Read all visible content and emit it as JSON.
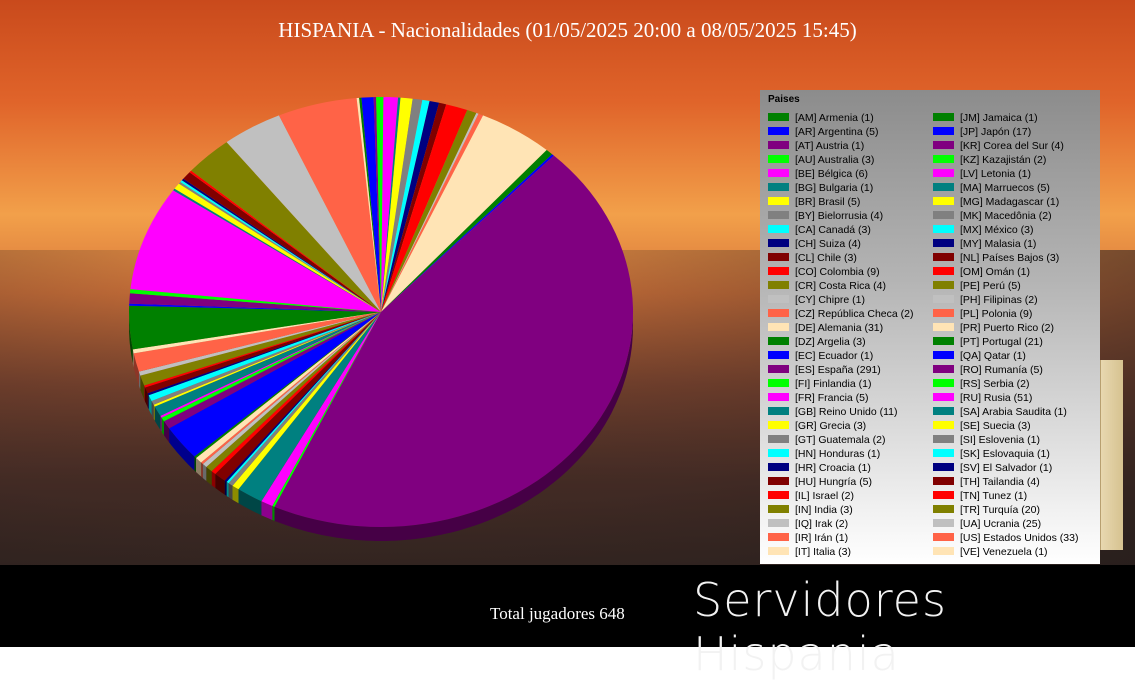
{
  "title": "HISPANIA - Nacionalidades (01/05/2025 20:00 a 08/05/2025 15:45)",
  "total_label": "Total jugadores 648",
  "brand": "Servidores Hispania",
  "legend_title": "Paises",
  "chart_data": {
    "type": "pie",
    "title": "HISPANIA - Nacionalidades (01/05/2025 20:00 a 08/05/2025 15:45)",
    "legend_placement": "right",
    "total": 648,
    "entries": [
      {
        "label": "[AM] Armenia (1)",
        "code": "AM",
        "name": "Armenia",
        "value": 1,
        "color": "#008000"
      },
      {
        "label": "[AR] Argentina (5)",
        "code": "AR",
        "name": "Argentina",
        "value": 5,
        "color": "#0000ff"
      },
      {
        "label": "[AT] Austria (1)",
        "code": "AT",
        "name": "Austria",
        "value": 1,
        "color": "#800080"
      },
      {
        "label": "[AU] Australia (3)",
        "code": "AU",
        "name": "Australia",
        "value": 3,
        "color": "#00ff00"
      },
      {
        "label": "[BE] Bélgica (6)",
        "code": "BE",
        "name": "Bélgica",
        "value": 6,
        "color": "#ff00ff"
      },
      {
        "label": "[BG] Bulgaria (1)",
        "code": "BG",
        "name": "Bulgaria",
        "value": 1,
        "color": "#008080"
      },
      {
        "label": "[BR] Brasil (5)",
        "code": "BR",
        "name": "Brasil",
        "value": 5,
        "color": "#ffff00"
      },
      {
        "label": "[BY] Bielorrusia (4)",
        "code": "BY",
        "name": "Bielorrusia",
        "value": 4,
        "color": "#808080"
      },
      {
        "label": "[CA] Canadá (3)",
        "code": "CA",
        "name": "Canadá",
        "value": 3,
        "color": "#00ffff"
      },
      {
        "label": "[CH] Suiza (4)",
        "code": "CH",
        "name": "Suiza",
        "value": 4,
        "color": "#000080"
      },
      {
        "label": "[CL] Chile (3)",
        "code": "CL",
        "name": "Chile",
        "value": 3,
        "color": "#800000"
      },
      {
        "label": "[CO] Colombia (9)",
        "code": "CO",
        "name": "Colombia",
        "value": 9,
        "color": "#ff0000"
      },
      {
        "label": "[CR] Costa Rica (4)",
        "code": "CR",
        "name": "Costa Rica",
        "value": 4,
        "color": "#808000"
      },
      {
        "label": "[CY] Chipre (1)",
        "code": "CY",
        "name": "Chipre",
        "value": 1,
        "color": "#c0c0c0"
      },
      {
        "label": "[CZ] República Checa (2)",
        "code": "CZ",
        "name": "República Checa",
        "value": 2,
        "color": "#ff6347"
      },
      {
        "label": "[DE] Alemania (31)",
        "code": "DE",
        "name": "Alemania",
        "value": 31,
        "color": "#ffe4b5"
      },
      {
        "label": "[DZ] Argelia (3)",
        "code": "DZ",
        "name": "Argelia",
        "value": 3,
        "color": "#008000"
      },
      {
        "label": "[EC] Ecuador (1)",
        "code": "EC",
        "name": "Ecuador",
        "value": 1,
        "color": "#0000ff"
      },
      {
        "label": "[ES] España (291)",
        "code": "ES",
        "name": "España",
        "value": 291,
        "color": "#800080"
      },
      {
        "label": "[FI] Finlandia (1)",
        "code": "FI",
        "name": "Finlandia",
        "value": 1,
        "color": "#00ff00"
      },
      {
        "label": "[FR] Francia (5)",
        "code": "FR",
        "name": "Francia",
        "value": 5,
        "color": "#ff00ff"
      },
      {
        "label": "[GB] Reino Unido (11)",
        "code": "GB",
        "name": "Reino Unido",
        "value": 11,
        "color": "#008080"
      },
      {
        "label": "[GR] Grecia (3)",
        "code": "GR",
        "name": "Grecia",
        "value": 3,
        "color": "#ffff00"
      },
      {
        "label": "[GT] Guatemala (2)",
        "code": "GT",
        "name": "Guatemala",
        "value": 2,
        "color": "#808080"
      },
      {
        "label": "[HN] Honduras (1)",
        "code": "HN",
        "name": "Honduras",
        "value": 1,
        "color": "#00ffff"
      },
      {
        "label": "[HR] Croacia (1)",
        "code": "HR",
        "name": "Croacia",
        "value": 1,
        "color": "#000080"
      },
      {
        "label": "[HU] Hungría (5)",
        "code": "HU",
        "name": "Hungría",
        "value": 5,
        "color": "#800000"
      },
      {
        "label": "[IL] Israel (2)",
        "code": "IL",
        "name": "Israel",
        "value": 2,
        "color": "#ff0000"
      },
      {
        "label": "[IN] India (3)",
        "code": "IN",
        "name": "India",
        "value": 3,
        "color": "#808000"
      },
      {
        "label": "[IQ] Irak (2)",
        "code": "IQ",
        "name": "Irak",
        "value": 2,
        "color": "#c0c0c0"
      },
      {
        "label": "[IR] Irán (1)",
        "code": "IR",
        "name": "Irán",
        "value": 1,
        "color": "#ff6347"
      },
      {
        "label": "[IT] Italia (3)",
        "code": "IT",
        "name": "Italia",
        "value": 3,
        "color": "#ffe4b5"
      },
      {
        "label": "[JM] Jamaica (1)",
        "code": "JM",
        "name": "Jamaica",
        "value": 1,
        "color": "#008000"
      },
      {
        "label": "[JP] Japón (17)",
        "code": "JP",
        "name": "Japón",
        "value": 17,
        "color": "#0000ff"
      },
      {
        "label": "[KR] Corea del Sur (4)",
        "code": "KR",
        "name": "Corea del Sur",
        "value": 4,
        "color": "#800080"
      },
      {
        "label": "[KZ] Kazajistán (2)",
        "code": "KZ",
        "name": "Kazajistán",
        "value": 2,
        "color": "#00ff00"
      },
      {
        "label": "[LV] Letonia (1)",
        "code": "LV",
        "name": "Letonia",
        "value": 1,
        "color": "#ff00ff"
      },
      {
        "label": "[MA] Marruecos (5)",
        "code": "MA",
        "name": "Marruecos",
        "value": 5,
        "color": "#008080"
      },
      {
        "label": "[MG] Madagascar (1)",
        "code": "MG",
        "name": "Madagascar",
        "value": 1,
        "color": "#ffff00"
      },
      {
        "label": "[MK] Macedônia (2)",
        "code": "MK",
        "name": "Macedônia",
        "value": 2,
        "color": "#808080"
      },
      {
        "label": "[MX] México (3)",
        "code": "MX",
        "name": "México",
        "value": 3,
        "color": "#00ffff"
      },
      {
        "label": "[MY] Malasia (1)",
        "code": "MY",
        "name": "Malasia",
        "value": 1,
        "color": "#000080"
      },
      {
        "label": "[NL] Países Bajos (3)",
        "code": "NL",
        "name": "Países Bajos",
        "value": 3,
        "color": "#800000"
      },
      {
        "label": "[OM] Omán (1)",
        "code": "OM",
        "name": "Omán",
        "value": 1,
        "color": "#ff0000"
      },
      {
        "label": "[PE] Perú (5)",
        "code": "PE",
        "name": "Perú",
        "value": 5,
        "color": "#808000"
      },
      {
        "label": "[PH] Filipinas (2)",
        "code": "PH",
        "name": "Filipinas",
        "value": 2,
        "color": "#c0c0c0"
      },
      {
        "label": "[PL] Polonia (9)",
        "code": "PL",
        "name": "Polonia",
        "value": 9,
        "color": "#ff6347"
      },
      {
        "label": "[PR] Puerto Rico (2)",
        "code": "PR",
        "name": "Puerto Rico",
        "value": 2,
        "color": "#ffe4b5"
      },
      {
        "label": "[PT] Portugal (21)",
        "code": "PT",
        "name": "Portugal",
        "value": 21,
        "color": "#008000"
      },
      {
        "label": "[QA] Qatar (1)",
        "code": "QA",
        "name": "Qatar",
        "value": 1,
        "color": "#0000ff"
      },
      {
        "label": "[RO] Rumanía (5)",
        "code": "RO",
        "name": "Rumanía",
        "value": 5,
        "color": "#800080"
      },
      {
        "label": "[RS] Serbia (2)",
        "code": "RS",
        "name": "Serbia",
        "value": 2,
        "color": "#00ff00"
      },
      {
        "label": "[RU] Rusia (51)",
        "code": "RU",
        "name": "Rusia",
        "value": 51,
        "color": "#ff00ff"
      },
      {
        "label": "[SA] Arabia Saudita (1)",
        "code": "SA",
        "name": "Arabia Saudita",
        "value": 1,
        "color": "#008080"
      },
      {
        "label": "[SE] Suecia (3)",
        "code": "SE",
        "name": "Suecia",
        "value": 3,
        "color": "#ffff00"
      },
      {
        "label": "[SI] Eslovenia (1)",
        "code": "SI",
        "name": "Eslovenia",
        "value": 1,
        "color": "#808080"
      },
      {
        "label": "[SK] Eslovaquia (1)",
        "code": "SK",
        "name": "Eslovaquia",
        "value": 1,
        "color": "#00ffff"
      },
      {
        "label": "[SV] El Salvador (1)",
        "code": "SV",
        "name": "El Salvador",
        "value": 1,
        "color": "#000080"
      },
      {
        "label": "[TH] Tailandia (4)",
        "code": "TH",
        "name": "Tailandia",
        "value": 4,
        "color": "#800000"
      },
      {
        "label": "[TN] Tunez (1)",
        "code": "TN",
        "name": "Tunez",
        "value": 1,
        "color": "#ff0000"
      },
      {
        "label": "[TR] Turquía (20)",
        "code": "TR",
        "name": "Turquía",
        "value": 20,
        "color": "#808000"
      },
      {
        "label": "[UA] Ucrania (25)",
        "code": "UA",
        "name": "Ucrania",
        "value": 25,
        "color": "#c0c0c0"
      },
      {
        "label": "[US] Estados Unidos (33)",
        "code": "US",
        "name": "Estados Unidos",
        "value": 33,
        "color": "#ff6347"
      },
      {
        "label": "[VE] Venezuela (1)",
        "code": "VE",
        "name": "Venezuela",
        "value": 1,
        "color": "#ffe4b5"
      }
    ]
  }
}
